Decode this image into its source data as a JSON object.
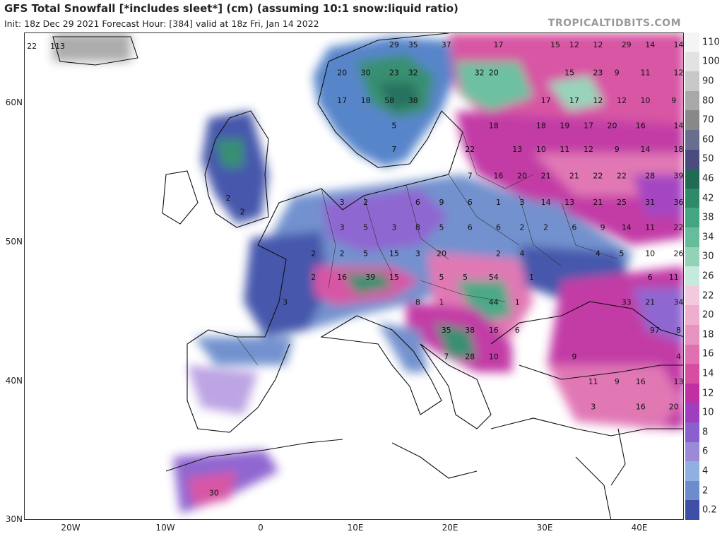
{
  "header": {
    "title": "GFS Total Snowfall [*includes sleet*] (cm) (assuming 10:1 snow:liquid ratio)",
    "subtitle": "Init: 18z Dec 29 2021   Forecast Hour: [384]   valid at 18z Fri, Jan 14 2022",
    "brand": "TROPICALTIDBITS.COM"
  },
  "axes": {
    "lat_labels": [
      "60N",
      "50N",
      "40N",
      "30N"
    ],
    "lon_labels": [
      "20W",
      "10W",
      "0",
      "10E",
      "20E",
      "30E",
      "40E"
    ]
  },
  "legend": {
    "labels": [
      "110",
      "100",
      "90",
      "80",
      "70",
      "60",
      "50",
      "46",
      "42",
      "38",
      "34",
      "30",
      "26",
      "22",
      "20",
      "18",
      "16",
      "14",
      "12",
      "10",
      "8",
      "6",
      "4",
      "2",
      "0.2"
    ],
    "colors": [
      "#f4f4f4",
      "#e2e2e2",
      "#c8c8c8",
      "#a8a8a8",
      "#888888",
      "#6a6e8e",
      "#4a4c80",
      "#1f6b56",
      "#2f8a6a",
      "#43a582",
      "#66bd9c",
      "#92d3b8",
      "#c4eadb",
      "#f3c9de",
      "#efaed0",
      "#e892c0",
      "#e071b1",
      "#d64ea0",
      "#c030a2",
      "#a03ebf",
      "#8a5fcf",
      "#9a8ad8",
      "#8fb0e0",
      "#6c8ccc",
      "#3e4fa8"
    ]
  },
  "map_labels": [
    {
      "t": "22",
      "lon": -24.2,
      "lat": 63.9
    },
    {
      "t": "113",
      "lon": -21.5,
      "lat": 63.9
    },
    {
      "t": "29",
      "lon": 14.0,
      "lat": 64.0
    },
    {
      "t": "35",
      "lon": 16.0,
      "lat": 64.0
    },
    {
      "t": "37",
      "lon": 19.5,
      "lat": 64.0
    },
    {
      "t": "17",
      "lon": 25.0,
      "lat": 64.0
    },
    {
      "t": "15",
      "lon": 31.0,
      "lat": 64.0
    },
    {
      "t": "12",
      "lon": 33.0,
      "lat": 64.0
    },
    {
      "t": "12",
      "lon": 35.5,
      "lat": 64.0
    },
    {
      "t": "29",
      "lon": 38.5,
      "lat": 64.0
    },
    {
      "t": "14",
      "lon": 41.0,
      "lat": 64.0
    },
    {
      "t": "14",
      "lon": 44.0,
      "lat": 64.0
    },
    {
      "t": "20",
      "lon": 8.5,
      "lat": 62.0
    },
    {
      "t": "30",
      "lon": 11.0,
      "lat": 62.0
    },
    {
      "t": "23",
      "lon": 14.0,
      "lat": 62.0
    },
    {
      "t": "32",
      "lon": 16.0,
      "lat": 62.0
    },
    {
      "t": "32",
      "lon": 23.0,
      "lat": 62.0
    },
    {
      "t": "20",
      "lon": 24.5,
      "lat": 62.0
    },
    {
      "t": "15",
      "lon": 32.5,
      "lat": 62.0
    },
    {
      "t": "23",
      "lon": 35.5,
      "lat": 62.0
    },
    {
      "t": "9",
      "lon": 37.5,
      "lat": 62.0
    },
    {
      "t": "11",
      "lon": 40.5,
      "lat": 62.0
    },
    {
      "t": "12",
      "lon": 44.0,
      "lat": 62.0
    },
    {
      "t": "17",
      "lon": 8.5,
      "lat": 60.0
    },
    {
      "t": "18",
      "lon": 11.0,
      "lat": 60.0
    },
    {
      "t": "58",
      "lon": 13.5,
      "lat": 60.0
    },
    {
      "t": "38",
      "lon": 16.0,
      "lat": 60.0
    },
    {
      "t": "17",
      "lon": 30.0,
      "lat": 60.0
    },
    {
      "t": "17",
      "lon": 33.0,
      "lat": 60.0
    },
    {
      "t": "12",
      "lon": 35.5,
      "lat": 60.0
    },
    {
      "t": "12",
      "lon": 38.0,
      "lat": 60.0
    },
    {
      "t": "10",
      "lon": 40.5,
      "lat": 60.0
    },
    {
      "t": "9",
      "lon": 43.5,
      "lat": 60.0
    },
    {
      "t": "5",
      "lon": 14.0,
      "lat": 58.2
    },
    {
      "t": "18",
      "lon": 24.5,
      "lat": 58.2
    },
    {
      "t": "18",
      "lon": 29.5,
      "lat": 58.2
    },
    {
      "t": "19",
      "lon": 32.0,
      "lat": 58.2
    },
    {
      "t": "17",
      "lon": 34.5,
      "lat": 58.2
    },
    {
      "t": "20",
      "lon": 37.0,
      "lat": 58.2
    },
    {
      "t": "16",
      "lon": 40.0,
      "lat": 58.2
    },
    {
      "t": "14",
      "lon": 44.0,
      "lat": 58.2
    },
    {
      "t": "7",
      "lon": 14.0,
      "lat": 56.5
    },
    {
      "t": "22",
      "lon": 22.0,
      "lat": 56.5
    },
    {
      "t": "13",
      "lon": 27.0,
      "lat": 56.5
    },
    {
      "t": "10",
      "lon": 29.5,
      "lat": 56.5
    },
    {
      "t": "11",
      "lon": 32.0,
      "lat": 56.5
    },
    {
      "t": "12",
      "lon": 34.5,
      "lat": 56.5
    },
    {
      "t": "9",
      "lon": 37.5,
      "lat": 56.5
    },
    {
      "t": "14",
      "lon": 40.5,
      "lat": 56.5
    },
    {
      "t": "18",
      "lon": 44.0,
      "lat": 56.5
    },
    {
      "t": "7",
      "lon": 22.0,
      "lat": 54.6
    },
    {
      "t": "16",
      "lon": 25.0,
      "lat": 54.6
    },
    {
      "t": "20",
      "lon": 27.5,
      "lat": 54.6
    },
    {
      "t": "21",
      "lon": 30.0,
      "lat": 54.6
    },
    {
      "t": "21",
      "lon": 33.0,
      "lat": 54.6
    },
    {
      "t": "22",
      "lon": 35.5,
      "lat": 54.6
    },
    {
      "t": "22",
      "lon": 38.0,
      "lat": 54.6
    },
    {
      "t": "28",
      "lon": 41.0,
      "lat": 54.6
    },
    {
      "t": "39",
      "lon": 44.0,
      "lat": 54.6
    },
    {
      "t": "3",
      "lon": 8.5,
      "lat": 52.7
    },
    {
      "t": "2",
      "lon": 11.0,
      "lat": 52.7
    },
    {
      "t": "6",
      "lon": 16.5,
      "lat": 52.7
    },
    {
      "t": "9",
      "lon": 19.0,
      "lat": 52.7
    },
    {
      "t": "6",
      "lon": 22.0,
      "lat": 52.7
    },
    {
      "t": "1",
      "lon": 25.0,
      "lat": 52.7
    },
    {
      "t": "3",
      "lon": 27.5,
      "lat": 52.7
    },
    {
      "t": "14",
      "lon": 30.0,
      "lat": 52.7
    },
    {
      "t": "13",
      "lon": 32.5,
      "lat": 52.7
    },
    {
      "t": "21",
      "lon": 35.5,
      "lat": 52.7
    },
    {
      "t": "25",
      "lon": 38.0,
      "lat": 52.7
    },
    {
      "t": "31",
      "lon": 41.0,
      "lat": 52.7
    },
    {
      "t": "36",
      "lon": 44.0,
      "lat": 52.7
    },
    {
      "t": "2",
      "lon": -3.5,
      "lat": 53.0
    },
    {
      "t": "2",
      "lon": -2.0,
      "lat": 52.0
    },
    {
      "t": "3",
      "lon": 8.5,
      "lat": 50.9
    },
    {
      "t": "5",
      "lon": 11.0,
      "lat": 50.9
    },
    {
      "t": "3",
      "lon": 14.0,
      "lat": 50.9
    },
    {
      "t": "8",
      "lon": 16.5,
      "lat": 50.9
    },
    {
      "t": "5",
      "lon": 19.0,
      "lat": 50.9
    },
    {
      "t": "6",
      "lon": 22.0,
      "lat": 50.9
    },
    {
      "t": "6",
      "lon": 25.0,
      "lat": 50.9
    },
    {
      "t": "2",
      "lon": 27.5,
      "lat": 50.9
    },
    {
      "t": "2",
      "lon": 30.0,
      "lat": 50.9
    },
    {
      "t": "6",
      "lon": 33.0,
      "lat": 50.9
    },
    {
      "t": "9",
      "lon": 36.0,
      "lat": 50.9
    },
    {
      "t": "14",
      "lon": 38.5,
      "lat": 50.9
    },
    {
      "t": "11",
      "lon": 41.0,
      "lat": 50.9
    },
    {
      "t": "22",
      "lon": 44.0,
      "lat": 50.9
    },
    {
      "t": "2",
      "lon": 5.5,
      "lat": 49.0
    },
    {
      "t": "2",
      "lon": 8.5,
      "lat": 49.0
    },
    {
      "t": "5",
      "lon": 11.0,
      "lat": 49.0
    },
    {
      "t": "15",
      "lon": 14.0,
      "lat": 49.0
    },
    {
      "t": "3",
      "lon": 16.5,
      "lat": 49.0
    },
    {
      "t": "20",
      "lon": 19.0,
      "lat": 49.0
    },
    {
      "t": "2",
      "lon": 25.0,
      "lat": 49.0
    },
    {
      "t": "4",
      "lon": 27.5,
      "lat": 49.0
    },
    {
      "t": "4",
      "lon": 35.5,
      "lat": 49.0
    },
    {
      "t": "5",
      "lon": 38.0,
      "lat": 49.0
    },
    {
      "t": "10",
      "lon": 41.0,
      "lat": 49.0
    },
    {
      "t": "26",
      "lon": 44.0,
      "lat": 49.0
    },
    {
      "t": "2",
      "lon": 5.5,
      "lat": 47.3
    },
    {
      "t": "16",
      "lon": 8.5,
      "lat": 47.3
    },
    {
      "t": "39",
      "lon": 11.5,
      "lat": 47.3
    },
    {
      "t": "15",
      "lon": 14.0,
      "lat": 47.3
    },
    {
      "t": "5",
      "lon": 19.0,
      "lat": 47.3
    },
    {
      "t": "5",
      "lon": 21.5,
      "lat": 47.3
    },
    {
      "t": "54",
      "lon": 24.5,
      "lat": 47.3
    },
    {
      "t": "1",
      "lon": 28.5,
      "lat": 47.3
    },
    {
      "t": "6",
      "lon": 41.0,
      "lat": 47.3
    },
    {
      "t": "11",
      "lon": 43.5,
      "lat": 47.3
    },
    {
      "t": "3",
      "lon": 2.5,
      "lat": 45.5
    },
    {
      "t": "8",
      "lon": 16.5,
      "lat": 45.5
    },
    {
      "t": "1",
      "lon": 19.0,
      "lat": 45.5
    },
    {
      "t": "44",
      "lon": 24.5,
      "lat": 45.5
    },
    {
      "t": "1",
      "lon": 27.0,
      "lat": 45.5
    },
    {
      "t": "33",
      "lon": 38.5,
      "lat": 45.5
    },
    {
      "t": "21",
      "lon": 41.0,
      "lat": 45.5
    },
    {
      "t": "34",
      "lon": 44.0,
      "lat": 45.5
    },
    {
      "t": "35",
      "lon": 19.5,
      "lat": 43.5
    },
    {
      "t": "38",
      "lon": 22.0,
      "lat": 43.5
    },
    {
      "t": "16",
      "lon": 24.5,
      "lat": 43.5
    },
    {
      "t": "6",
      "lon": 27.0,
      "lat": 43.5
    },
    {
      "t": "97",
      "lon": 41.5,
      "lat": 43.5
    },
    {
      "t": "8",
      "lon": 44.0,
      "lat": 43.5
    },
    {
      "t": "7",
      "lon": 19.5,
      "lat": 41.6
    },
    {
      "t": "28",
      "lon": 22.0,
      "lat": 41.6
    },
    {
      "t": "10",
      "lon": 24.5,
      "lat": 41.6
    },
    {
      "t": "9",
      "lon": 33.0,
      "lat": 41.6
    },
    {
      "t": "4",
      "lon": 44.0,
      "lat": 41.6
    },
    {
      "t": "11",
      "lon": 35.0,
      "lat": 39.8
    },
    {
      "t": "9",
      "lon": 37.5,
      "lat": 39.8
    },
    {
      "t": "16",
      "lon": 40.0,
      "lat": 39.8
    },
    {
      "t": "13",
      "lon": 44.0,
      "lat": 39.8
    },
    {
      "t": "3",
      "lon": 35.0,
      "lat": 38.0
    },
    {
      "t": "16",
      "lon": 40.0,
      "lat": 38.0
    },
    {
      "t": "20",
      "lon": 43.5,
      "lat": 38.0
    },
    {
      "t": "30",
      "lon": -5.0,
      "lat": 31.8
    }
  ]
}
